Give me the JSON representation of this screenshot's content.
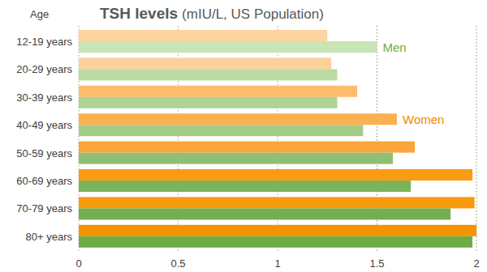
{
  "chart_data": {
    "type": "bar",
    "orientation": "horizontal",
    "title": "TSH levels",
    "subtitle": "(mIU/L, US Population)",
    "y_label": "Age",
    "categories": [
      "12-19 years",
      "20-29 years",
      "30-39 years",
      "40-49 years",
      "50-59 years",
      "60-69 years",
      "70-79 years",
      "80+ years"
    ],
    "series": [
      {
        "name": "Women",
        "colors": [
          "#fdd3a2",
          "#fdd09c",
          "#fdbd6c",
          "#fcb150",
          "#fba53a",
          "#fa9b12",
          "#f89a0c",
          "#f59300"
        ],
        "values": [
          1.25,
          1.27,
          1.4,
          1.6,
          1.69,
          1.98,
          1.99,
          2.0
        ]
      },
      {
        "name": "Men",
        "colors": [
          "#c9e4b5",
          "#badba3",
          "#aed394",
          "#a3cc87",
          "#8fc072",
          "#7bb35a",
          "#73ae51",
          "#6fac46"
        ],
        "values": [
          1.5,
          1.3,
          1.3,
          1.43,
          1.58,
          1.67,
          1.87,
          1.98
        ]
      }
    ],
    "xlim": [
      0,
      2
    ],
    "xticks": [
      0,
      0.5,
      1,
      1.5,
      2
    ],
    "grid": true
  }
}
